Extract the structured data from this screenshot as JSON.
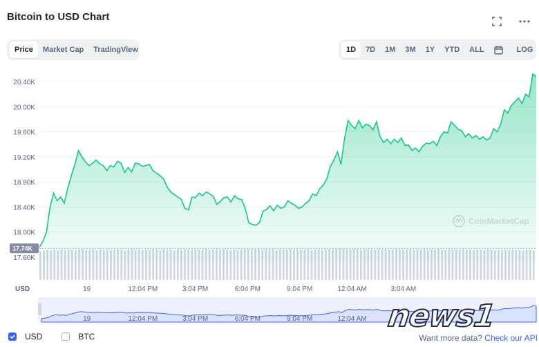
{
  "header": {
    "title": "Bitcoin to USD Chart",
    "icons": [
      "fullscreen-icon",
      "more-icon"
    ]
  },
  "metric_tabs": [
    {
      "label": "Price",
      "active": true
    },
    {
      "label": "Market Cap",
      "active": false
    },
    {
      "label": "TradingView",
      "active": false
    }
  ],
  "range_tabs": [
    {
      "label": "1D",
      "active": true
    },
    {
      "label": "7D",
      "active": false
    },
    {
      "label": "1M",
      "active": false
    },
    {
      "label": "3M",
      "active": false
    },
    {
      "label": "1Y",
      "active": false
    },
    {
      "label": "YTD",
      "active": false
    },
    {
      "label": "ALL",
      "active": false
    }
  ],
  "calendar_icon": "calendar-icon",
  "log_label": "LOG",
  "chart_data": {
    "type": "area",
    "ylim": [
      17600,
      20600
    ],
    "y_ticks": [
      "20.40K",
      "20.00K",
      "19.60K",
      "19.20K",
      "18.80K",
      "18.40K",
      "18.00K",
      "17.60K"
    ],
    "y_tick_values": [
      20400,
      20000,
      19600,
      19200,
      18800,
      18400,
      18000,
      17600
    ],
    "current_label": "17.74K",
    "current_value": 17740,
    "x_axis_label": "USD",
    "x_ticks": [
      "19",
      "12:04 PM",
      "3:04 PM",
      "6:04 PM",
      "9:04 PM",
      "12:04 AM",
      "3:04 AM"
    ],
    "x_tick_positions": [
      0.154,
      0.336,
      0.506,
      0.676,
      0.845,
      1.015,
      1.182
    ],
    "series_values": [
      17760,
      17850,
      18000,
      18400,
      18620,
      18500,
      18560,
      18460,
      18700,
      18900,
      19080,
      19300,
      19200,
      19120,
      19060,
      19100,
      19150,
      19090,
      19060,
      18980,
      19060,
      19040,
      19130,
      19100,
      18950,
      19030,
      18960,
      19100,
      19090,
      19050,
      19060,
      19080,
      18980,
      18940,
      18900,
      18850,
      18720,
      18640,
      18600,
      18560,
      18520,
      18380,
      18350,
      18560,
      18550,
      18620,
      18580,
      18640,
      18610,
      18570,
      18440,
      18490,
      18550,
      18560,
      18480,
      18580,
      18530,
      18520,
      18380,
      18150,
      18120,
      18110,
      18150,
      18330,
      18360,
      18420,
      18340,
      18430,
      18380,
      18400,
      18500,
      18460,
      18430,
      18380,
      18400,
      18460,
      18500,
      18610,
      18580,
      18690,
      18750,
      18850,
      19050,
      19150,
      19280,
      19080,
      19500,
      19780,
      19700,
      19650,
      19780,
      19660,
      19720,
      19700,
      19630,
      19760,
      19520,
      19430,
      19480,
      19410,
      19480,
      19430,
      19500,
      19380,
      19390,
      19300,
      19340,
      19280,
      19370,
      19420,
      19410,
      19450,
      19380,
      19520,
      19600,
      19580,
      19760,
      19700,
      19640,
      19620,
      19520,
      19570,
      19500,
      19540,
      19480,
      19520,
      19470,
      19500,
      19650,
      19600,
      19720,
      19950,
      19900,
      20020,
      20080,
      20140,
      20050,
      20200,
      20160,
      20520,
      20480
    ],
    "volume_values": [
      0.88,
      0.9,
      0.92,
      0.91,
      0.93,
      0.9,
      0.94,
      0.92,
      0.95,
      0.93,
      0.91,
      0.94,
      0.96,
      0.92,
      0.93,
      0.95,
      0.91,
      0.94,
      0.93,
      0.96,
      0.92,
      0.94,
      0.95,
      0.93,
      0.9,
      0.94,
      0.96,
      0.93,
      0.95,
      0.92,
      0.94,
      0.93,
      0.96,
      0.94,
      0.92,
      0.95,
      0.93,
      0.94,
      0.91,
      0.95,
      0.93,
      0.96,
      0.94,
      0.92,
      0.95,
      0.94,
      0.93,
      0.96,
      0.92,
      0.94,
      0.95,
      0.93,
      0.96,
      0.94,
      0.92,
      0.95,
      0.93,
      0.94,
      0.96,
      0.97,
      0.95,
      0.94,
      0.96,
      0.93,
      0.95,
      0.94,
      0.96,
      0.92,
      0.95,
      0.94,
      0.93,
      0.96,
      0.94,
      0.95,
      0.93,
      0.94,
      0.96,
      0.92,
      0.95,
      0.94,
      0.93,
      0.95,
      0.96,
      0.94,
      0.95,
      0.97,
      0.96,
      0.95,
      0.94,
      0.96,
      0.95,
      0.93,
      0.96,
      0.94,
      0.95,
      0.93,
      0.96,
      0.94,
      0.95,
      0.93,
      0.94,
      0.96,
      0.95,
      0.93,
      0.94,
      0.96,
      0.93,
      0.95,
      0.94,
      0.96,
      0.94,
      0.95,
      0.93,
      0.96,
      0.94,
      0.92,
      0.94,
      0.93,
      0.95,
      0.92,
      0.94,
      0.93,
      0.95,
      0.92,
      0.94,
      0.93,
      0.92,
      0.94,
      0.93,
      0.91,
      0.93,
      0.92,
      0.94,
      0.91,
      0.93,
      0.92,
      0.93,
      0.91,
      0.92,
      0.93,
      0.9
    ],
    "watermark": "CoinMarketCap",
    "colors": {
      "line": "#16c784",
      "area_top": "#16c784",
      "current_tag": "#858ca2",
      "volume": "#cfd6e4",
      "navigator_line": "#3861fb",
      "navigator_bg": "#dbe3ff"
    }
  },
  "navigator_ticks": [
    "19",
    "12:04 PM",
    "3:04 PM",
    "6:04 PM",
    "9:04 PM",
    "12:04 AM"
  ],
  "legend": [
    {
      "label": "USD",
      "checked": true
    },
    {
      "label": "BTC",
      "checked": false
    }
  ],
  "footer": {
    "text": "Want more data?",
    "link": "Check our API"
  },
  "watermark_news": "news1"
}
